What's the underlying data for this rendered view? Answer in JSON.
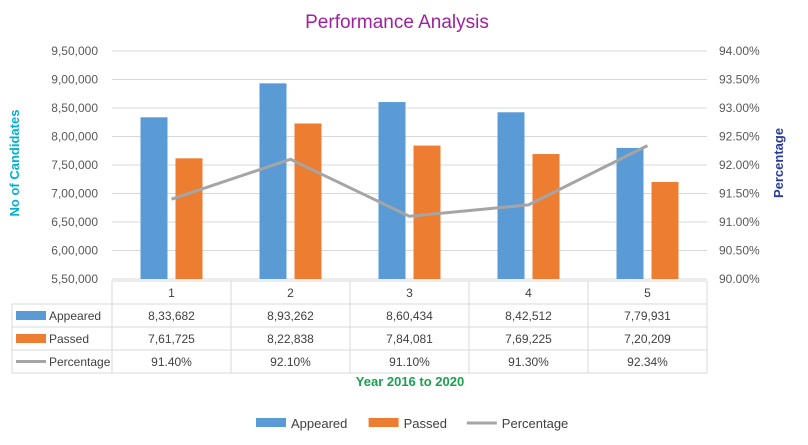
{
  "chart_data": {
    "type": "bar",
    "title": "Performance Analysis",
    "xlabel": "Year 2016 to 2020",
    "ylabel": "No of Candidates",
    "y2label": "Percentage",
    "categories": [
      "1",
      "2",
      "3",
      "4",
      "5"
    ],
    "ylim": [
      550000,
      950000
    ],
    "y2lim": [
      90.0,
      94.0
    ],
    "yticks": [
      "5,50,000",
      "6,00,000",
      "6,50,000",
      "7,00,000",
      "7,50,000",
      "8,00,000",
      "8,50,000",
      "9,00,000",
      "9,50,000"
    ],
    "y2ticks": [
      "90.00%",
      "90.50%",
      "91.00%",
      "91.50%",
      "92.00%",
      "92.50%",
      "93.00%",
      "93.50%",
      "94.00%"
    ],
    "grid": true,
    "legend_position": "bottom",
    "series": [
      {
        "name": "Appeared",
        "kind": "bar",
        "axis": "left",
        "color": "#5b9bd5",
        "values": [
          833682,
          893262,
          860434,
          842512,
          779931
        ],
        "labels": [
          "8,33,682",
          "8,93,262",
          "8,60,434",
          "8,42,512",
          "7,79,931"
        ]
      },
      {
        "name": "Passed",
        "kind": "bar",
        "axis": "left",
        "color": "#ed7d31",
        "values": [
          761725,
          822838,
          784081,
          769225,
          720209
        ],
        "labels": [
          "7,61,725",
          "8,22,838",
          "7,84,081",
          "7,69,225",
          "7,20,209"
        ]
      },
      {
        "name": "Percentage",
        "kind": "line",
        "axis": "right",
        "color": "#a5a5a5",
        "values": [
          91.4,
          92.1,
          91.1,
          91.3,
          92.34
        ],
        "labels": [
          "91.40%",
          "92.10%",
          "91.10%",
          "91.30%",
          "92.34%"
        ]
      }
    ],
    "colors": {
      "title": "#a020a0",
      "ylabel": "#00b0d0",
      "y2label": "#2a3a9a",
      "xlabel": "#1aa050"
    }
  }
}
